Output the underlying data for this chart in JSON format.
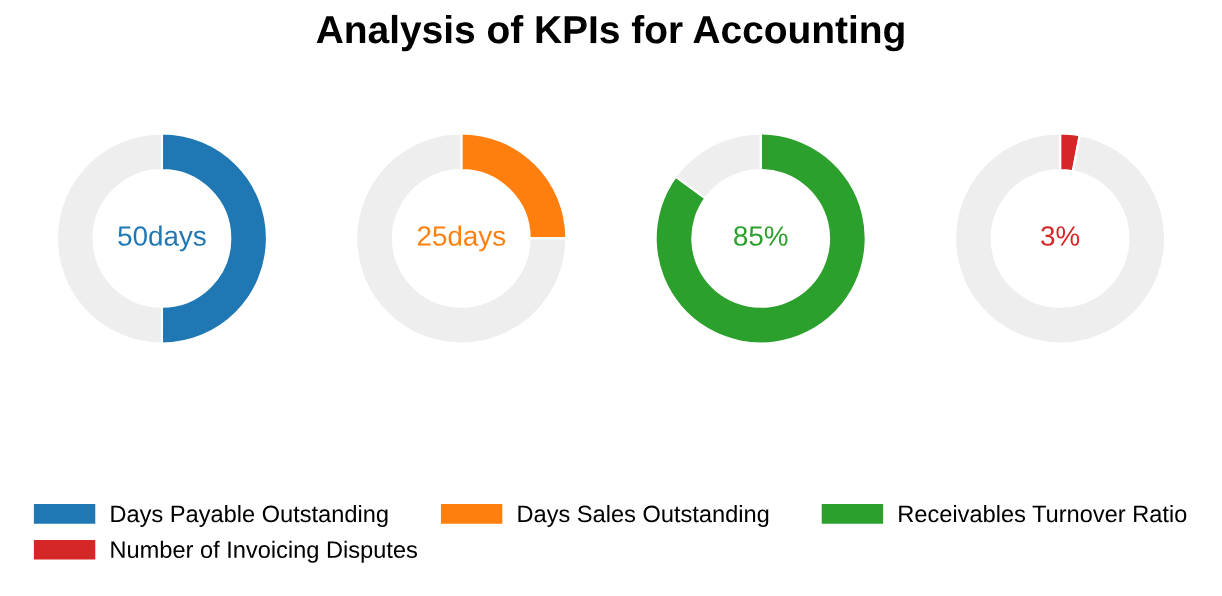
{
  "chart_data": [
    {
      "type": "donut",
      "title": "Analysis of KPIs for Accounting",
      "categories": [
        "Days Payable Outstanding",
        null
      ],
      "values": [
        50,
        50
      ],
      "colors": [
        "#1f77b4",
        "#eeeeee"
      ],
      "value_labels": [
        "50days",
        null
      ],
      "legend": "bottom"
    },
    {
      "type": "donut",
      "categories": [
        "Days Sales Outstanding",
        null
      ],
      "values": [
        25,
        75
      ],
      "colors": [
        "#ff7f0e",
        "#eeeeee"
      ],
      "value_labels": [
        "25days",
        null
      ],
      "legend": "bottom"
    },
    {
      "type": "donut",
      "categories": [
        "Receivables Turnover Ratio",
        null
      ],
      "values": [
        85,
        15
      ],
      "colors": [
        "#2ca02c",
        "#eeeeee"
      ],
      "value_labels": [
        "85%",
        null
      ],
      "legend": "bottom"
    },
    {
      "type": "donut",
      "categories": [
        "Number of Invoicing Disputes",
        null
      ],
      "values": [
        3,
        97
      ],
      "colors": [
        "#d62728",
        "#eeeeee"
      ],
      "value_labels": [
        "3%",
        null
      ],
      "legend": "bottom"
    }
  ]
}
